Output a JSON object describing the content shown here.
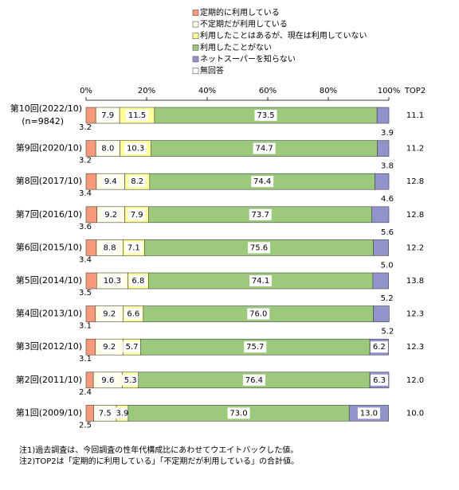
{
  "chart_data": {
    "type": "bar",
    "orientation": "horizontal",
    "stacked": true,
    "categories": [
      "第10回(2022/10)",
      "第9回(2020/10)",
      "第8回(2017/10)",
      "第7回(2016/10)",
      "第6回(2015/10)",
      "第5回(2014/10)",
      "第4回(2013/10)",
      "第3回(2012/10)",
      "第2回(2011/10)",
      "第1回(2009/10)"
    ],
    "sample_size": "(n=9842)",
    "series": [
      {
        "name": "定期的に利用している",
        "color": "#f79a7a",
        "values": [
          3.2,
          3.2,
          3.4,
          3.6,
          3.4,
          3.5,
          3.1,
          3.1,
          2.4,
          2.5
        ],
        "value_labels": [
          "3.2",
          "3.2",
          "3.4",
          "3.6",
          "3.4",
          "3.5",
          "3.1",
          "3.1",
          "2.4",
          "2.5"
        ]
      },
      {
        "name": "不定期だが利用している",
        "color": "#fffde3",
        "values": [
          7.9,
          8.0,
          9.4,
          9.2,
          8.8,
          10.3,
          9.2,
          9.2,
          9.6,
          7.5
        ],
        "value_labels": [
          "7.9",
          "8.0",
          "9.4",
          "9.2",
          "8.8",
          "10.3",
          "9.2",
          "9.2",
          "9.6",
          "7.5"
        ]
      },
      {
        "name": "利用したことはあるが、現在は利用していない",
        "color": "#ffff99",
        "values": [
          11.5,
          10.3,
          8.2,
          7.9,
          7.1,
          6.8,
          6.6,
          5.7,
          5.3,
          3.9
        ],
        "value_labels": [
          "11.5",
          "10.3",
          "8.2",
          "7.9",
          "7.1",
          "6.8",
          "6.6",
          "5.7",
          "5.3",
          "3.9"
        ]
      },
      {
        "name": "利用したことがない",
        "color": "#9cc97c",
        "values": [
          73.5,
          74.7,
          74.4,
          73.7,
          75.6,
          74.1,
          76.0,
          75.7,
          76.4,
          73.0
        ],
        "value_labels": [
          "73.5",
          "74.7",
          "74.4",
          "73.7",
          "75.6",
          "74.1",
          "76.0",
          "75.7",
          "76.4",
          "73.0"
        ]
      },
      {
        "name": "ネットスーパーを知らない",
        "color": "#9393cc",
        "values": [
          3.9,
          3.8,
          4.6,
          5.6,
          5.0,
          5.2,
          5.2,
          6.2,
          6.3,
          13.0
        ],
        "value_labels": [
          "3.9",
          "3.8",
          "4.6",
          "5.6",
          "5.0",
          "5.2",
          "5.2",
          "6.2",
          "6.3",
          "13.0"
        ]
      },
      {
        "name": "無回答",
        "color": "#ffffff",
        "values": [
          0,
          0,
          0,
          0,
          0,
          0,
          0,
          0,
          0,
          0
        ]
      }
    ],
    "xlim": [
      0,
      100
    ],
    "xticks": [
      {
        "value": 0,
        "label": "0%"
      },
      {
        "value": 20,
        "label": "20%"
      },
      {
        "value": 40,
        "label": "40%"
      },
      {
        "value": 60,
        "label": "60%"
      },
      {
        "value": 80,
        "label": "80%"
      },
      {
        "value": 100,
        "label": "100%"
      }
    ],
    "top2": {
      "label": "TOP2",
      "values": [
        11.1,
        11.2,
        12.8,
        12.8,
        12.2,
        13.8,
        12.3,
        12.3,
        12.0,
        10.0
      ],
      "value_labels": [
        "11.1",
        "11.2",
        "12.8",
        "12.8",
        "12.2",
        "13.8",
        "12.3",
        "12.3",
        "12.0",
        "10.0"
      ]
    },
    "notes": [
      "注1)過去調査は、今回調査の性年代構成比にあわせてウエイトバックした値。",
      "注2)TOP2は「定期的に利用している」「不定期だが利用している」の合計値。"
    ]
  }
}
